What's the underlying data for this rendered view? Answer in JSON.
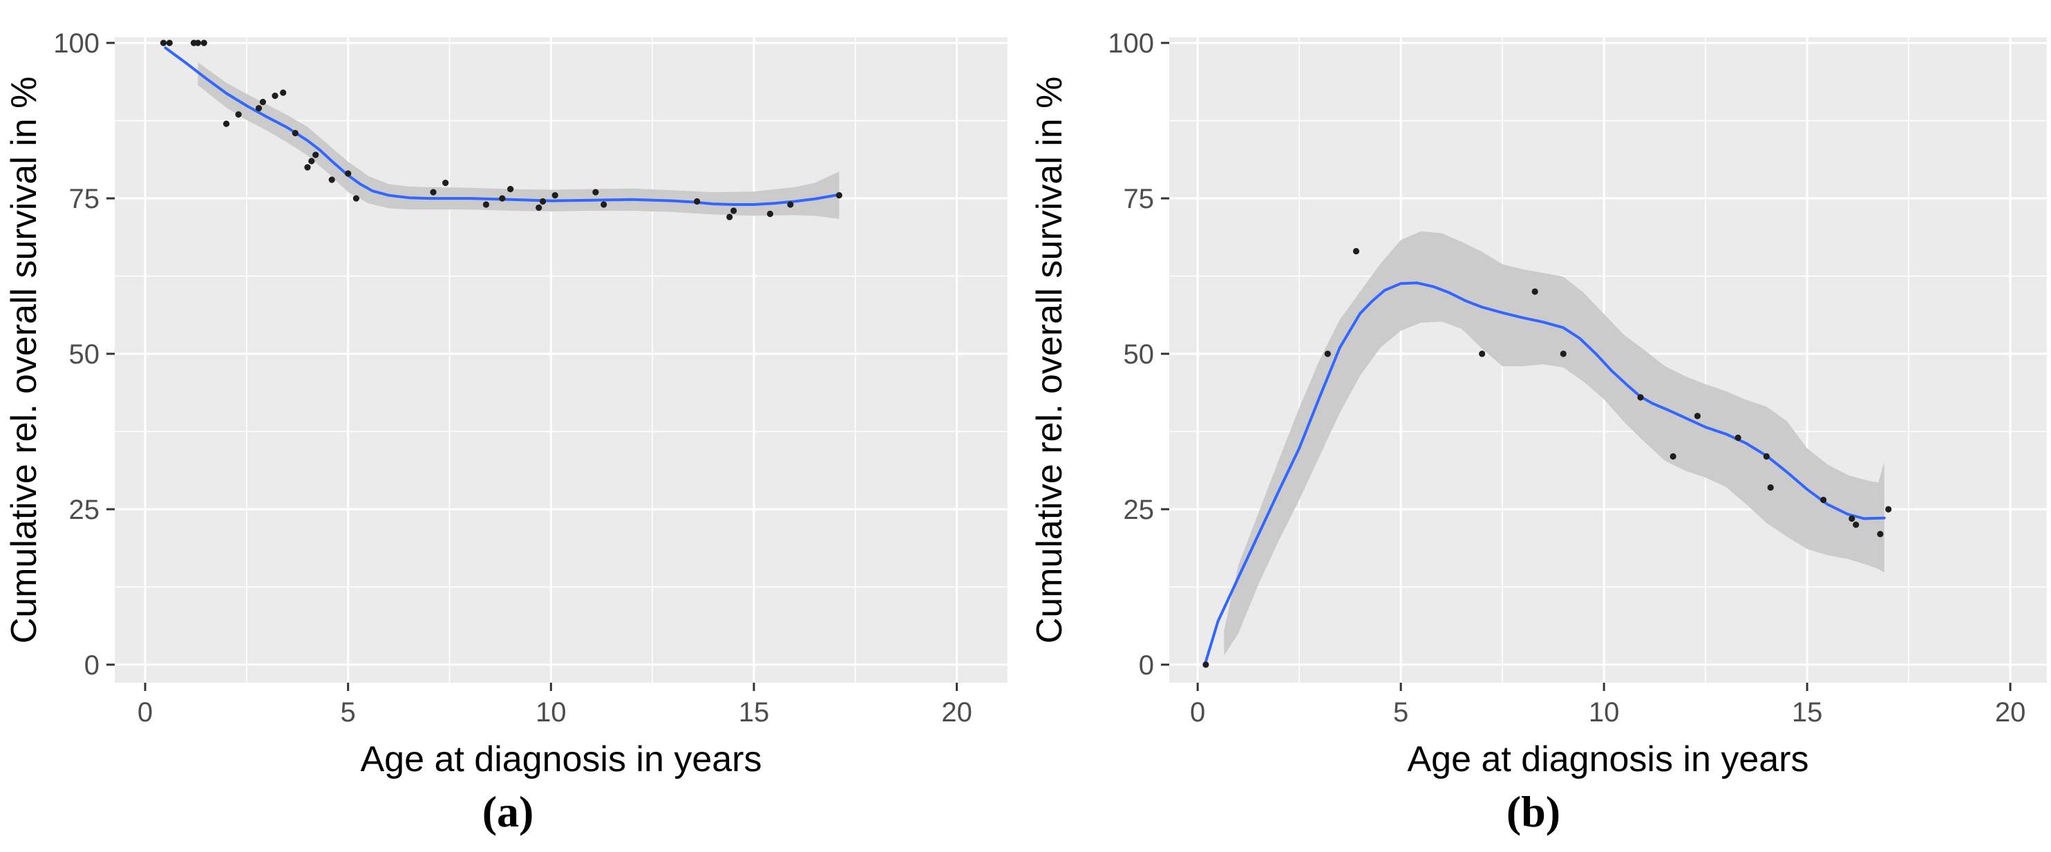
{
  "figure": {
    "background": "#FFFFFF",
    "captions": [
      "(a)",
      "(b)"
    ]
  },
  "colors": {
    "panel_bg": "#EBEBEB",
    "grid": "#FFFFFF",
    "smooth_line": "#3366FF",
    "band": "#CBCBCB",
    "point": "#1E1E1E",
    "axis_text": "#4D4D4D",
    "tick_mark": "#333333",
    "title_text": "#000000"
  },
  "chart_data": [
    {
      "type": "scatter",
      "caption": "(a)",
      "title": "",
      "xlabel": "Age at diagnosis in years",
      "ylabel": "Cumulative rel. overall survival in %",
      "xlim": [
        -0.75,
        21.25
      ],
      "ylim": [
        -2.9,
        100.9
      ],
      "x_ticks": [
        0,
        5,
        10,
        15,
        20
      ],
      "y_ticks": [
        0,
        25,
        50,
        75,
        100
      ],
      "x_minor_ticks": [
        2.5,
        7.5,
        12.5,
        17.5
      ],
      "y_minor_ticks": [
        12.5,
        37.5,
        62.5,
        87.5
      ],
      "grid": "on",
      "legend": "none",
      "points": [
        [
          0.45,
          100
        ],
        [
          0.6,
          100
        ],
        [
          1.2,
          100
        ],
        [
          1.3,
          100
        ],
        [
          1.45,
          100
        ],
        [
          2.0,
          87
        ],
        [
          2.3,
          88.5
        ],
        [
          2.8,
          89.5
        ],
        [
          2.9,
          90.5
        ],
        [
          3.2,
          91.5
        ],
        [
          3.4,
          92
        ],
        [
          3.7,
          85.5
        ],
        [
          4.0,
          80
        ],
        [
          4.1,
          81
        ],
        [
          4.2,
          82
        ],
        [
          4.6,
          78
        ],
        [
          5.0,
          79
        ],
        [
          5.2,
          75
        ],
        [
          7.1,
          76
        ],
        [
          7.4,
          77.5
        ],
        [
          8.4,
          74
        ],
        [
          8.8,
          75
        ],
        [
          9.0,
          76.5
        ],
        [
          9.7,
          73.5
        ],
        [
          9.8,
          74.5
        ],
        [
          10.1,
          75.5
        ],
        [
          11.1,
          76
        ],
        [
          11.3,
          74
        ],
        [
          13.6,
          74.5
        ],
        [
          14.4,
          72
        ],
        [
          14.5,
          73
        ],
        [
          15.4,
          72.5
        ],
        [
          15.9,
          74
        ],
        [
          17.1,
          75.5
        ]
      ],
      "smooth_line": [
        [
          0.5,
          99.2
        ],
        [
          1,
          96.8
        ],
        [
          1.5,
          94.3
        ],
        [
          2,
          91.9
        ],
        [
          2.5,
          89.9
        ],
        [
          3,
          88.1
        ],
        [
          3.5,
          86.4
        ],
        [
          4,
          84.3
        ],
        [
          4.3,
          82.8
        ],
        [
          4.6,
          81.0
        ],
        [
          5,
          78.7
        ],
        [
          5.3,
          77.3
        ],
        [
          5.6,
          76.2
        ],
        [
          6,
          75.5
        ],
        [
          6.5,
          75.1
        ],
        [
          7,
          75.0
        ],
        [
          8,
          75.0
        ],
        [
          9,
          74.8
        ],
        [
          10,
          74.6
        ],
        [
          11,
          74.7
        ],
        [
          12,
          74.8
        ],
        [
          13,
          74.6
        ],
        [
          13.5,
          74.4
        ],
        [
          14,
          74.1
        ],
        [
          14.5,
          74.0
        ],
        [
          15,
          74.0
        ],
        [
          15.5,
          74.2
        ],
        [
          16,
          74.5
        ],
        [
          16.5,
          74.9
        ],
        [
          17.1,
          75.6
        ]
      ],
      "band": [
        [
          1.3,
          93.2,
          96.9
        ],
        [
          2,
          89.6,
          93.6
        ],
        [
          2.5,
          87.6,
          91.8
        ],
        [
          3,
          85.9,
          90.1
        ],
        [
          3.5,
          84.0,
          88.4
        ],
        [
          4,
          81.9,
          86.5
        ],
        [
          4.5,
          79.1,
          83.7
        ],
        [
          5,
          76.0,
          80.9
        ],
        [
          5.5,
          74.2,
          78.6
        ],
        [
          6,
          73.4,
          77.3
        ],
        [
          6.5,
          73.2,
          76.9
        ],
        [
          7,
          73.2,
          76.8
        ],
        [
          8,
          73.2,
          76.7
        ],
        [
          9,
          73.0,
          76.5
        ],
        [
          10,
          72.9,
          76.4
        ],
        [
          11,
          73.0,
          76.5
        ],
        [
          12,
          73.0,
          76.6
        ],
        [
          13,
          72.8,
          76.3
        ],
        [
          14,
          72.4,
          76.0
        ],
        [
          15,
          72.2,
          76.1
        ],
        [
          16,
          72.3,
          76.8
        ],
        [
          16.5,
          72.2,
          77.5
        ],
        [
          17.1,
          71.7,
          79.3
        ]
      ]
    },
    {
      "type": "scatter",
      "caption": "(b)",
      "title": "",
      "xlabel": "Age at diagnosis in years",
      "ylabel": "Cumulative rel. overall survival in %",
      "xlim": [
        -0.7,
        20.9
      ],
      "ylim": [
        -2.9,
        100.9
      ],
      "x_ticks": [
        0,
        5,
        10,
        15,
        20
      ],
      "y_ticks": [
        0,
        25,
        50,
        75,
        100
      ],
      "x_minor_ticks": [
        2.5,
        7.5,
        12.5,
        17.5
      ],
      "y_minor_ticks": [
        12.5,
        37.5,
        62.5,
        87.5
      ],
      "grid": "on",
      "legend": "none",
      "points": [
        [
          0.2,
          0
        ],
        [
          3.2,
          50
        ],
        [
          3.9,
          66.5
        ],
        [
          7.0,
          50
        ],
        [
          8.3,
          60
        ],
        [
          9.0,
          50
        ],
        [
          10.9,
          43
        ],
        [
          11.7,
          33.5
        ],
        [
          12.3,
          40
        ],
        [
          13.3,
          36.5
        ],
        [
          14.0,
          33.5
        ],
        [
          14.1,
          28.5
        ],
        [
          15.4,
          26.5
        ],
        [
          16.1,
          23.5
        ],
        [
          16.2,
          22.5
        ],
        [
          16.8,
          21
        ],
        [
          17.0,
          25
        ]
      ],
      "smooth_line": [
        [
          0.2,
          0.5
        ],
        [
          0.5,
          7
        ],
        [
          1,
          14
        ],
        [
          1.5,
          21
        ],
        [
          2,
          28
        ],
        [
          2.5,
          34.8
        ],
        [
          3,
          43
        ],
        [
          3.5,
          51
        ],
        [
          4,
          56.5
        ],
        [
          4.3,
          58.5
        ],
        [
          4.6,
          60.2
        ],
        [
          5,
          61.3
        ],
        [
          5.4,
          61.4
        ],
        [
          5.8,
          60.8
        ],
        [
          6.2,
          59.8
        ],
        [
          6.6,
          58.5
        ],
        [
          7,
          57.5
        ],
        [
          7.5,
          56.6
        ],
        [
          8,
          55.8
        ],
        [
          8.5,
          55.1
        ],
        [
          9,
          54.2
        ],
        [
          9.4,
          52.5
        ],
        [
          9.8,
          50
        ],
        [
          10.2,
          47.2
        ],
        [
          10.6,
          44.8
        ],
        [
          10.9,
          43.1
        ],
        [
          11.2,
          42
        ],
        [
          11.6,
          40.9
        ],
        [
          12,
          39.7
        ],
        [
          12.5,
          38.2
        ],
        [
          13,
          37.1
        ],
        [
          13.5,
          35.6
        ],
        [
          14,
          33.6
        ],
        [
          14.5,
          31
        ],
        [
          15,
          28.2
        ],
        [
          15.5,
          25.8
        ],
        [
          16,
          24.2
        ],
        [
          16.4,
          23.5
        ],
        [
          16.9,
          23.6
        ]
      ],
      "band": [
        [
          0.65,
          1.5,
          5.5
        ],
        [
          1,
          5,
          16
        ],
        [
          1.5,
          13,
          24.5
        ],
        [
          2,
          20,
          33
        ],
        [
          2.5,
          26.5,
          41.3
        ],
        [
          3,
          33.5,
          49
        ],
        [
          3.5,
          40.5,
          55.5
        ],
        [
          4,
          46.5,
          60
        ],
        [
          4.5,
          51,
          64.5
        ],
        [
          5,
          53.7,
          68.3
        ],
        [
          5.5,
          55,
          69.7
        ],
        [
          6,
          55.2,
          69.4
        ],
        [
          6.5,
          54,
          68
        ],
        [
          7,
          50.8,
          66.4
        ],
        [
          7.5,
          48,
          64.4
        ],
        [
          8,
          48,
          63.6
        ],
        [
          8.5,
          48.3,
          63
        ],
        [
          9,
          47.8,
          62.4
        ],
        [
          9.5,
          45.5,
          59.8
        ],
        [
          10,
          42.7,
          56.4
        ],
        [
          10.5,
          39,
          53
        ],
        [
          11,
          35.8,
          50.6
        ],
        [
          11.5,
          32.8,
          48
        ],
        [
          12,
          31.2,
          46.4
        ],
        [
          12.5,
          30.1,
          45.1
        ],
        [
          13,
          28.6,
          44
        ],
        [
          13.5,
          25.8,
          42.6
        ],
        [
          14,
          22.8,
          41.5
        ],
        [
          14.5,
          20.6,
          39.2
        ],
        [
          15,
          18.6,
          34.8
        ],
        [
          15.5,
          17.6,
          32.2
        ],
        [
          16,
          17,
          30.5
        ],
        [
          16.5,
          16,
          29.6
        ],
        [
          16.75,
          15.4,
          29.3
        ],
        [
          16.9,
          14.8,
          32.6
        ]
      ]
    }
  ]
}
